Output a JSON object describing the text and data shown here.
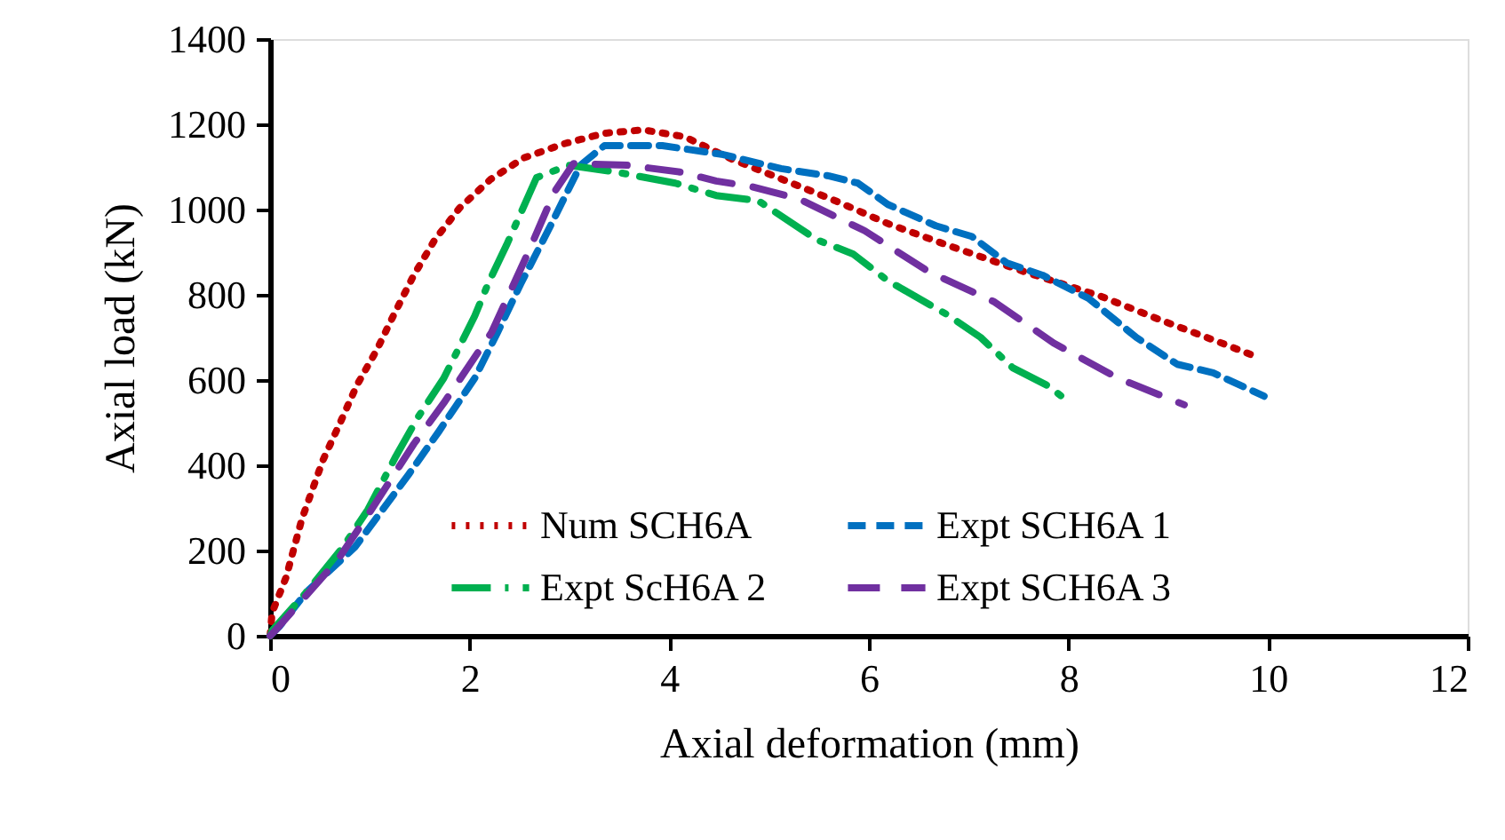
{
  "chart_data": {
    "type": "line",
    "xlabel": "Axial deformation (mm)",
    "ylabel": "Axial load (kN)",
    "xlim": [
      0,
      12
    ],
    "xticks": [
      0,
      2,
      4,
      6,
      8,
      10,
      12
    ],
    "ylim": [
      0,
      1400
    ],
    "yticks": [
      0,
      200,
      400,
      600,
      800,
      1000,
      1200,
      1400
    ],
    "grid": false,
    "legend": "bottom",
    "marker": "none",
    "series": [
      {
        "name": "Num SCH6A",
        "color": "#c00000",
        "line_style": "dotted",
        "x": [
          0,
          0.02,
          0.16,
          0.32,
          0.53,
          0.71,
          0.87,
          1.07,
          1.25,
          1.44,
          1.65,
          1.9,
          2.21,
          2.54,
          2.94,
          3.35,
          3.74,
          4.15,
          4.64,
          5.09,
          5.66,
          6.19,
          6.78,
          7.56,
          8.33,
          8.91,
          9.52,
          9.89
        ],
        "values": [
          0,
          54,
          137,
          275,
          412,
          504,
          588,
          671,
          758,
          846,
          929,
          1004,
          1071,
          1121,
          1154,
          1179,
          1187,
          1171,
          1117,
          1075,
          1021,
          967,
          917,
          854,
          796,
          742,
          688,
          654
        ]
      },
      {
        "name": "Expt SCH6A 1",
        "color": "#0070c0",
        "line_style": "dashed",
        "x": [
          0,
          0.09,
          0.37,
          0.85,
          1.39,
          1.69,
          2.05,
          2.28,
          2.51,
          2.81,
          3.11,
          3.35,
          3.93,
          4.54,
          5.12,
          5.6,
          5.89,
          6.19,
          6.67,
          7.03,
          7.38,
          7.74,
          8.2,
          8.68,
          9.09,
          9.45,
          9.96
        ],
        "values": [
          0,
          21,
          104,
          208,
          379,
          479,
          604,
          712,
          825,
          962,
          1104,
          1150,
          1150,
          1129,
          1096,
          1079,
          1062,
          1012,
          962,
          937,
          875,
          846,
          792,
          700,
          637,
          617,
          562
        ]
      },
      {
        "name": "Expt ScH6A 2",
        "color": "#00b050",
        "line_style": "dashdot",
        "x": [
          0,
          0.02,
          0.37,
          0.73,
          0.98,
          1.26,
          1.48,
          1.74,
          2.05,
          2.19,
          2.37,
          2.67,
          2.99,
          3.47,
          4.06,
          4.47,
          4.89,
          5.48,
          5.84,
          6.19,
          6.78,
          7.12,
          7.44,
          7.79,
          8.02
        ],
        "values": [
          0,
          12,
          104,
          208,
          296,
          421,
          512,
          604,
          750,
          829,
          917,
          1075,
          1104,
          1088,
          1062,
          1033,
          1021,
          929,
          896,
          833,
          754,
          700,
          629,
          587,
          546
        ]
      },
      {
        "name": "Expt SCH6A 3",
        "color": "#7030a0",
        "line_style": "longdash",
        "x": [
          0,
          0.05,
          0.68,
          0.98,
          1.44,
          1.74,
          2.22,
          2.58,
          2.85,
          3.04,
          3.58,
          4.11,
          4.47,
          4.82,
          5.3,
          5.96,
          6.6,
          7.26,
          7.85,
          8.5,
          9.16
        ],
        "values": [
          0,
          12,
          179,
          283,
          450,
          546,
          712,
          896,
          1042,
          1108,
          1104,
          1088,
          1067,
          1054,
          1025,
          950,
          854,
          783,
          687,
          604,
          542
        ]
      }
    ]
  }
}
